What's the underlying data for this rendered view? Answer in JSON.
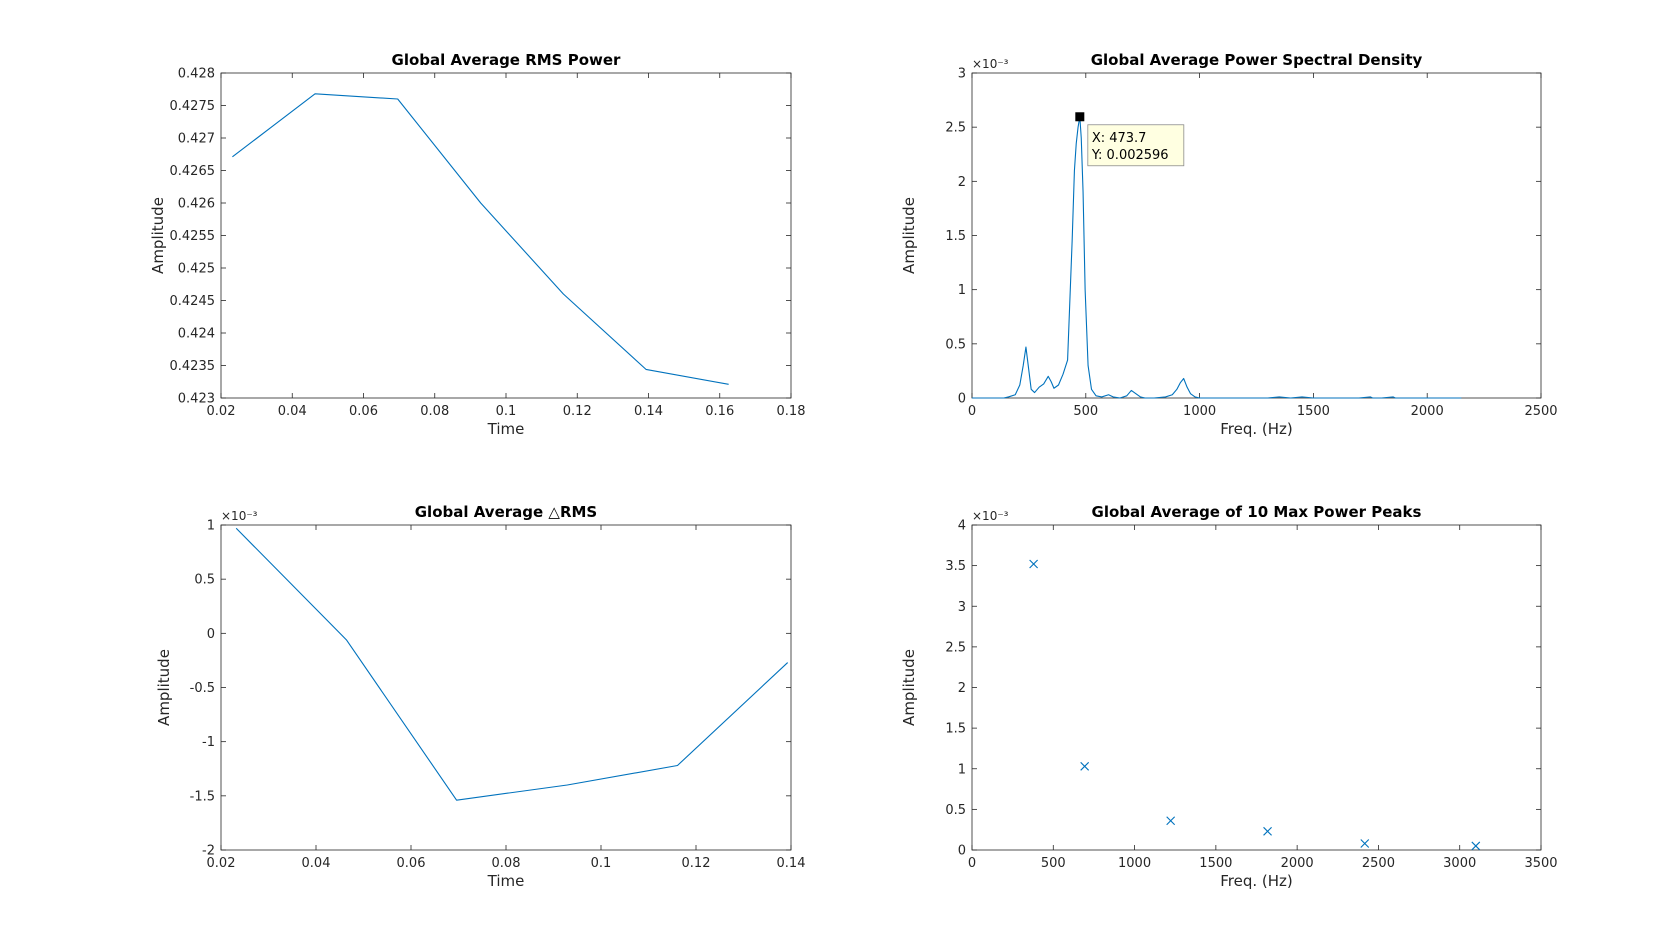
{
  "chart_data": [
    {
      "type": "line",
      "title": "Global Average RMS Power",
      "xlabel": "Time",
      "ylabel": "Amplitude",
      "xlim": [
        0.02,
        0.18
      ],
      "ylim": [
        0.423,
        0.428
      ],
      "xticks": [
        0.02,
        0.04,
        0.06,
        0.08,
        0.1,
        0.12,
        0.14,
        0.16,
        0.18
      ],
      "xtick_labels": [
        "0.02",
        "0.04",
        "0.06",
        "0.08",
        "0.1",
        "0.12",
        "0.14",
        "0.16",
        "0.18"
      ],
      "yticks": [
        0.423,
        0.4235,
        0.424,
        0.4245,
        0.425,
        0.4255,
        0.426,
        0.4265,
        0.427,
        0.4275,
        0.428
      ],
      "ytick_labels": [
        "0.423",
        "0.4235",
        "0.424",
        "0.4245",
        "0.425",
        "0.4255",
        "0.426",
        "0.4265",
        "0.427",
        "0.4275",
        "0.428"
      ],
      "exponent_label": "",
      "line_color": "#0072bd",
      "series": [
        {
          "x": [
            0.0232,
            0.0464,
            0.0696,
            0.0929,
            0.1161,
            0.1393,
            0.1625
          ],
          "y": [
            0.42671,
            0.42768,
            0.4276,
            0.426,
            0.4246,
            0.42344,
            0.42321
          ]
        }
      ]
    },
    {
      "type": "line",
      "title": "Global Average Power Spectral Density",
      "xlabel": "Freq. (Hz)",
      "ylabel": "Amplitude",
      "xlim": [
        0,
        2500
      ],
      "ylim": [
        0,
        0.003
      ],
      "xticks": [
        0,
        500,
        1000,
        1500,
        2000,
        2500
      ],
      "xtick_labels": [
        "0",
        "500",
        "1000",
        "1500",
        "2000",
        "2500"
      ],
      "yticks": [
        0,
        0.0005,
        0.001,
        0.0015,
        0.002,
        0.0025,
        0.003
      ],
      "ytick_labels": [
        "0",
        "0.5",
        "1",
        "1.5",
        "2",
        "2.5",
        "3"
      ],
      "exponent_label": "×10⁻³",
      "line_color": "#0072bd",
      "series": [
        {
          "x": [
            0,
            140,
            160,
            190,
            210,
            225,
            237,
            247,
            260,
            275,
            295,
            315,
            335,
            348,
            360,
            380,
            400,
            420,
            440,
            450,
            458,
            466,
            473.7,
            480,
            488,
            497,
            510,
            525,
            545,
            570,
            600,
            620,
            650,
            680,
            700,
            720,
            740,
            760,
            800,
            850,
            880,
            900,
            915,
            930,
            945,
            960,
            980,
            1000,
            1030,
            1060,
            1200,
            1300,
            1350,
            1400,
            1450,
            1500,
            1700,
            1750,
            1760,
            1800,
            1850,
            1860,
            1900,
            2000,
            2100,
            2150
          ],
          "y": [
            0,
            0,
            1e-05,
            3e-05,
            0.00012,
            0.0003,
            0.00047,
            0.0003,
            8e-05,
            5e-05,
            0.0001,
            0.00013,
            0.0002,
            0.00015,
            9e-05,
            0.00012,
            0.00022,
            0.00035,
            0.00145,
            0.0021,
            0.00235,
            0.0025,
            0.002596,
            0.0024,
            0.0019,
            0.001,
            0.0003,
            8e-05,
            2e-05,
            1e-05,
            3e-05,
            1e-05,
            0,
            2e-05,
            7e-05,
            4e-05,
            1e-05,
            0,
            0,
            1e-05,
            3e-05,
            8e-05,
            0.00014,
            0.00018,
            0.0001,
            4e-05,
            1e-05,
            0,
            0,
            0,
            0,
            0,
            1e-05,
            0,
            1e-05,
            0,
            0,
            1e-05,
            0,
            0,
            1e-05,
            0,
            0,
            0,
            0,
            0
          ]
        }
      ],
      "datatip": {
        "x": 473.7,
        "y": 0.002596,
        "x_label": "X: 473.7",
        "y_label": "Y: 0.002596"
      }
    },
    {
      "type": "line",
      "title": "Global Average △RMS",
      "xlabel": "Time",
      "ylabel": "Amplitude",
      "xlim": [
        0.02,
        0.14
      ],
      "ylim": [
        -0.002,
        0.001
      ],
      "xticks": [
        0.02,
        0.04,
        0.06,
        0.08,
        0.1,
        0.12,
        0.14
      ],
      "xtick_labels": [
        "0.02",
        "0.04",
        "0.06",
        "0.08",
        "0.1",
        "0.12",
        "0.14"
      ],
      "yticks": [
        -0.002,
        -0.0015,
        -0.001,
        -0.0005,
        0,
        0.0005,
        0.001
      ],
      "ytick_labels": [
        "-2",
        "-1.5",
        "-1",
        "-0.5",
        "0",
        "0.5",
        "1"
      ],
      "exponent_label": "×10⁻³",
      "line_color": "#0072bd",
      "series": [
        {
          "x": [
            0.0232,
            0.0464,
            0.0696,
            0.0929,
            0.1161,
            0.1393
          ],
          "y": [
            0.00097,
            -6e-05,
            -0.00154,
            -0.0014,
            -0.00122,
            -0.00027
          ]
        }
      ]
    },
    {
      "type": "scatter",
      "title": "Global Average of 10 Max Power Peaks",
      "xlabel": "Freq. (Hz)",
      "ylabel": "Amplitude",
      "xlim": [
        0,
        3500
      ],
      "ylim": [
        0,
        0.004
      ],
      "xticks": [
        0,
        500,
        1000,
        1500,
        2000,
        2500,
        3000,
        3500
      ],
      "xtick_labels": [
        "0",
        "500",
        "1000",
        "1500",
        "2000",
        "2500",
        "3000",
        "3500"
      ],
      "yticks": [
        0,
        0.0005,
        0.001,
        0.0015,
        0.002,
        0.0025,
        0.003,
        0.0035,
        0.004
      ],
      "ytick_labels": [
        "0",
        "0.5",
        "1",
        "1.5",
        "2",
        "2.5",
        "3",
        "3.5",
        "4"
      ],
      "exponent_label": "×10⁻³",
      "marker": "x",
      "line_color": "#0072bd",
      "series": [
        {
          "x": [
            379,
            693,
            1222,
            1818,
            2416,
            3099
          ],
          "y": [
            0.00352,
            0.00103,
            0.00036,
            0.00023,
            8e-05,
            5e-05
          ]
        }
      ]
    }
  ]
}
